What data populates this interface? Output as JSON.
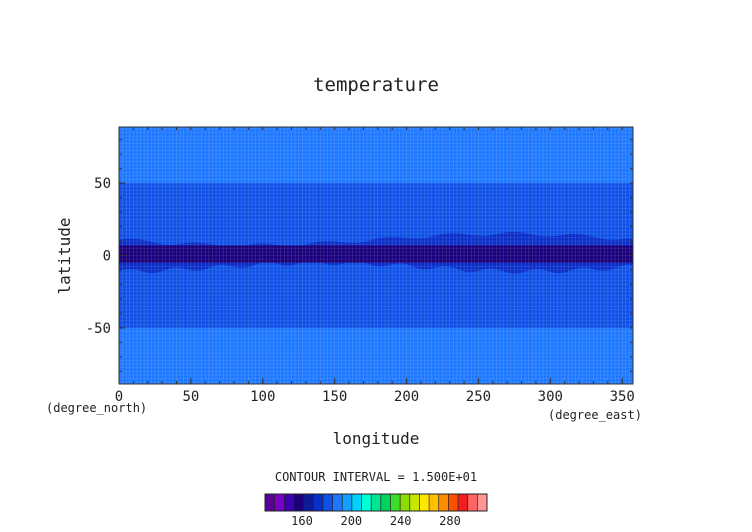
{
  "chart_data": {
    "type": "heatmap",
    "title": "temperature",
    "xlabel": "longitude",
    "ylabel": "latitude",
    "x_unit": "(degree_east)",
    "y_unit": "(degree_north)",
    "xlim": [
      0,
      357.5
    ],
    "ylim": [
      -88.75,
      88.75
    ],
    "x_ticks": [
      0,
      50,
      100,
      150,
      200,
      250,
      300,
      350
    ],
    "y_ticks": [
      -50,
      0,
      50
    ],
    "contour_interval_label": "CONTOUR INTERVAL = 1.500E+01",
    "colorbar": {
      "ticks": [
        160,
        200,
        240,
        280
      ],
      "range": [
        130,
        310
      ],
      "colors": [
        "#5a0096",
        "#7a00c8",
        "#3c00b4",
        "#1a007c",
        "#0d1c96",
        "#0a2ec8",
        "#0f50e6",
        "#1e78ff",
        "#14a0ff",
        "#00d2ff",
        "#00ffd2",
        "#00e690",
        "#00d25a",
        "#3cdc28",
        "#8cdc00",
        "#c8e600",
        "#ffe600",
        "#ffbe00",
        "#ff8c00",
        "#ff5000",
        "#f01e1e",
        "#ff6464",
        "#ff9696"
      ]
    },
    "bands": [
      {
        "range": "50 to 88.75 and -88.75 to -50",
        "color": "#1e78ff"
      },
      {
        "range": "-50 to 50 outer",
        "color": "#0f50e6"
      },
      {
        "range": "equatorial core",
        "color": "#0a2ec8"
      },
      {
        "range": "equatorial center",
        "color": "#1a007c"
      }
    ]
  }
}
